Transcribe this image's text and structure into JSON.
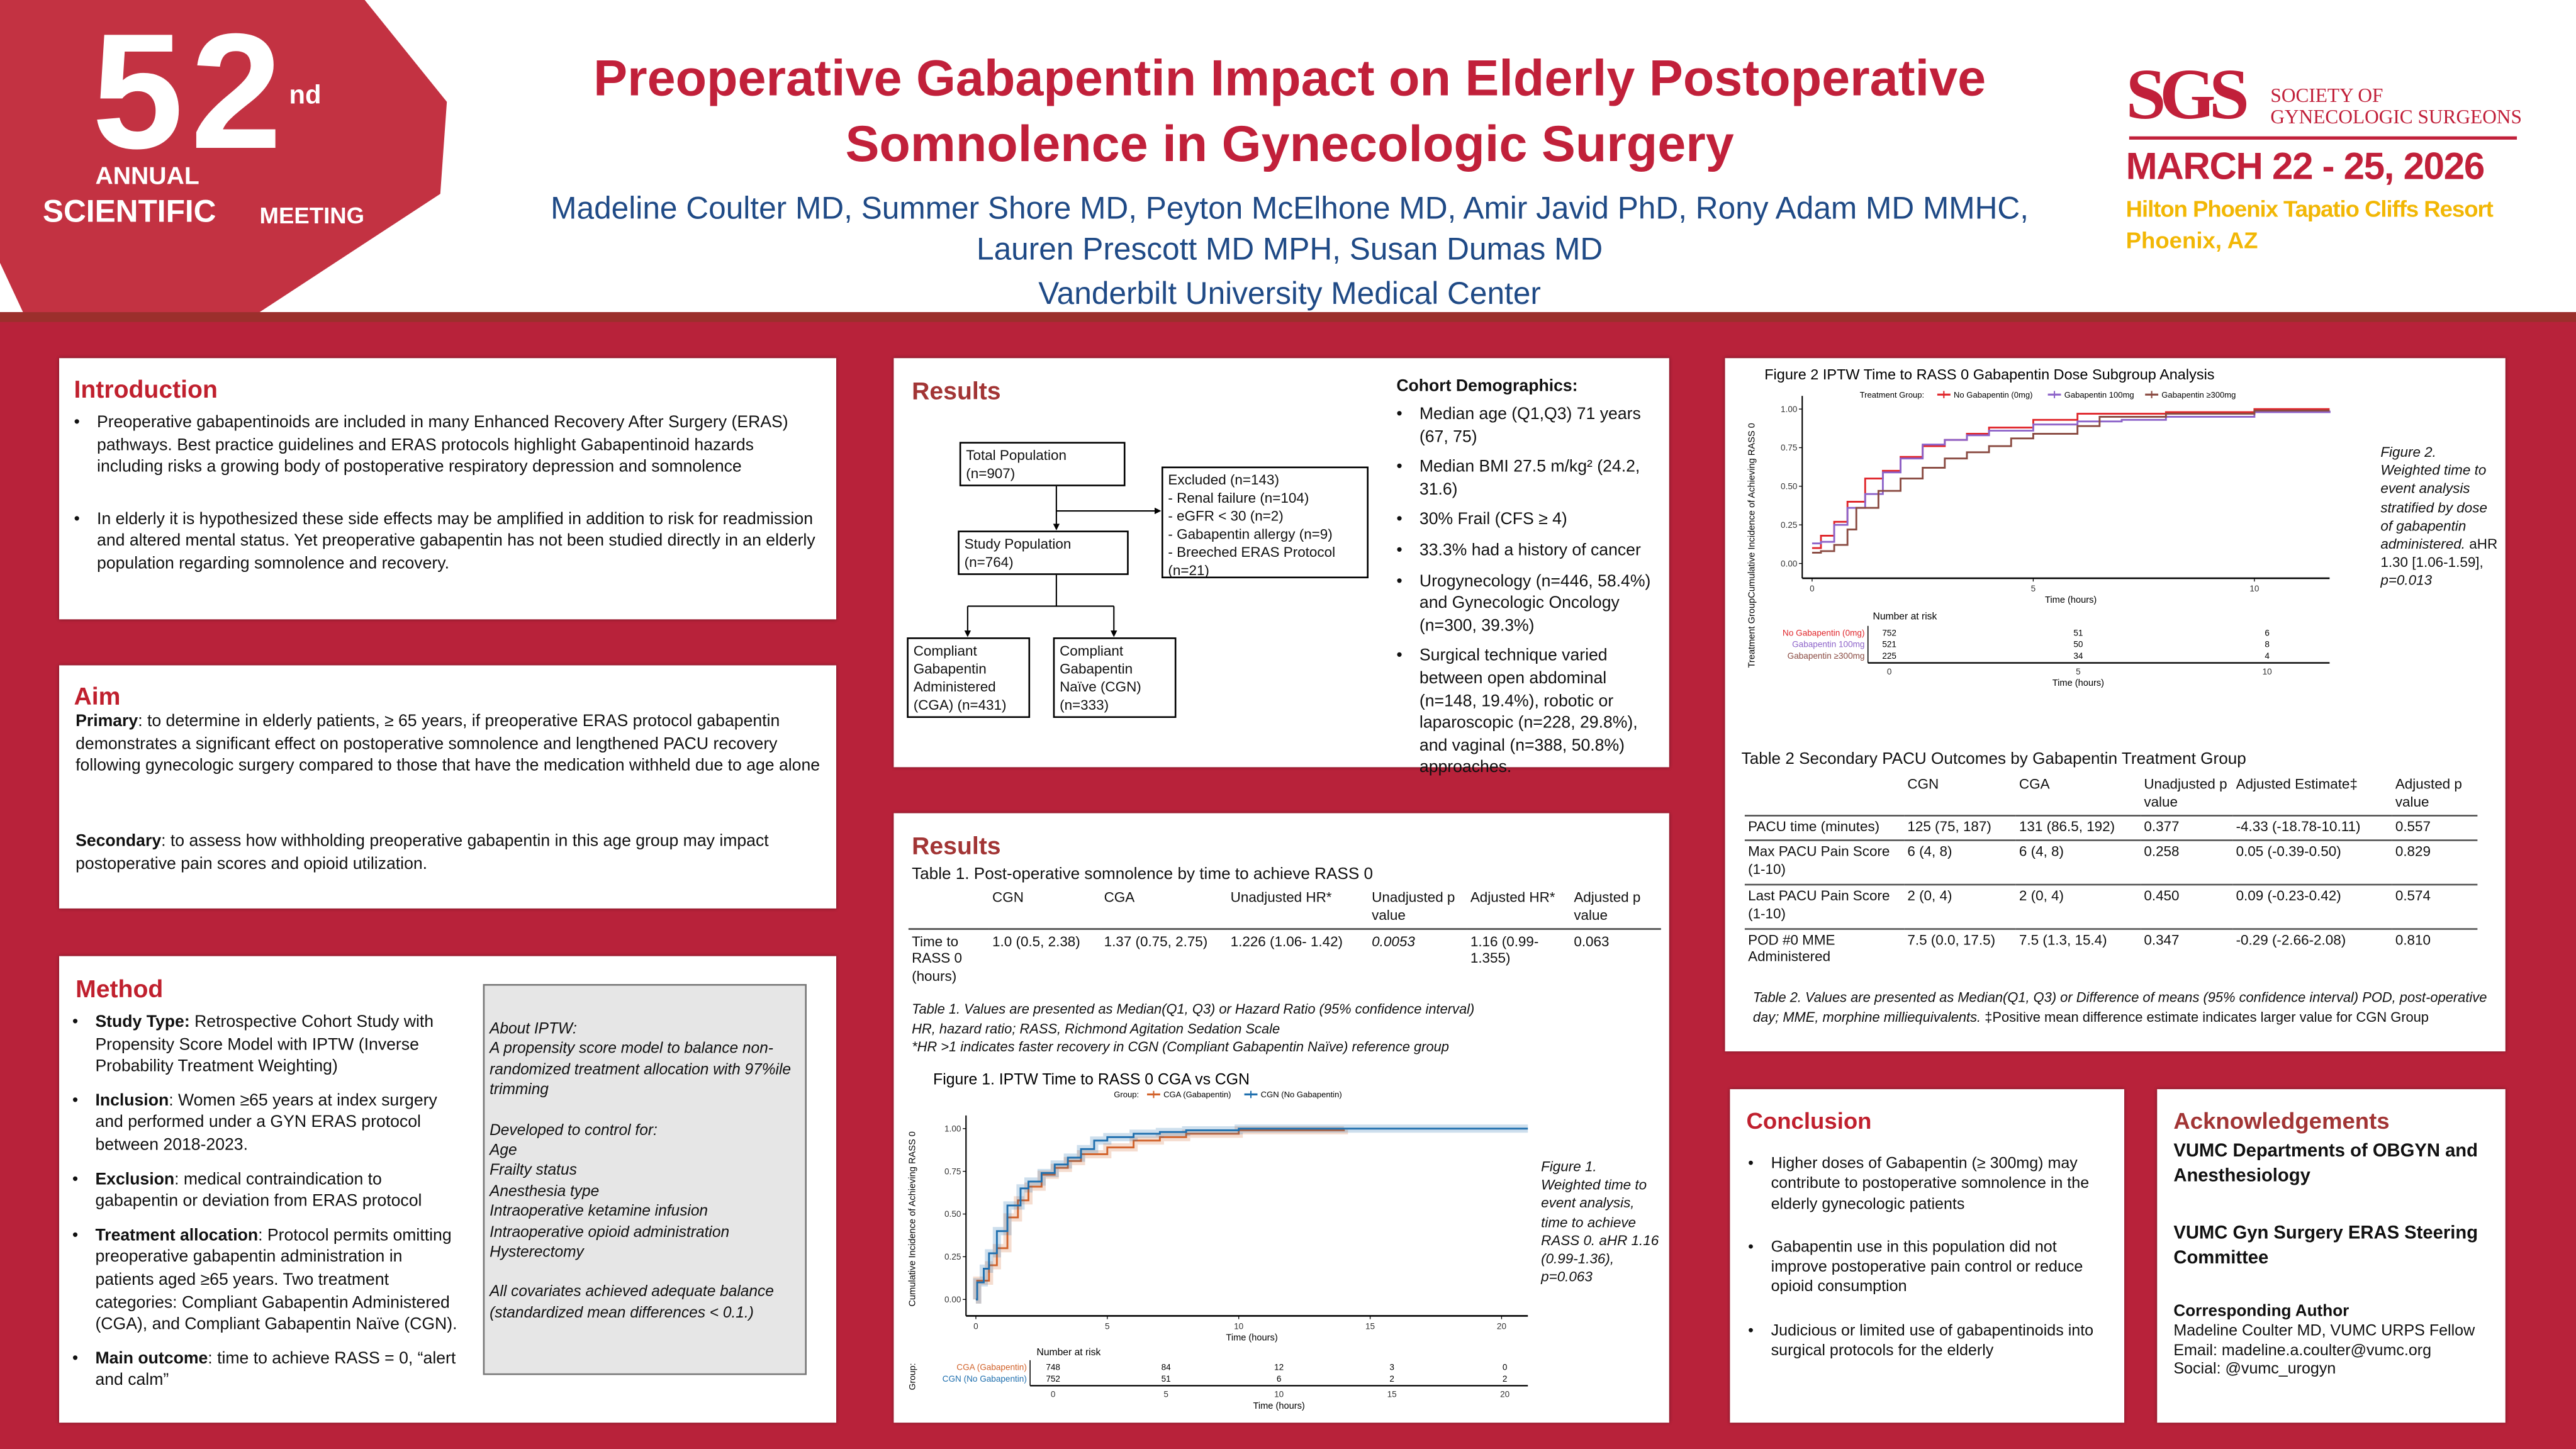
{
  "logo": {
    "num5": "5",
    "num2": "2",
    "suffix": "nd",
    "annual": "ANNUAL",
    "scientific": "SCIENTIFIC",
    "meeting": "MEETING"
  },
  "header": {
    "title_line1": "Preoperative Gabapentin Impact on Elderly Postoperative",
    "title_line2": "Somnolence in Gynecologic Surgery",
    "authors_line1": "Madeline Coulter MD, Summer Shore MD, Peyton McElhone MD, Amir Javid PhD, Rony Adam MD MMHC,",
    "authors_line2": "Lauren Prescott MD MPH, Susan Dumas MD",
    "affiliation": "Vanderbilt University Medical Center"
  },
  "society": {
    "abbr": "SGS",
    "name_line1": "SOCIETY OF",
    "name_line2": "GYNECOLOGIC SURGEONS",
    "dates": "MARCH 22 - 25, 2026",
    "venue": "Hilton Phoenix Tapatio Cliffs Resort",
    "city": "Phoenix, AZ",
    "colors": {
      "red": "#c1203a",
      "gold": "#f2b705"
    }
  },
  "introduction": {
    "heading": "Introduction",
    "bullets": [
      "Preoperative gabapentinoids are included in many Enhanced Recovery After Surgery (ERAS) pathways. Best practice guidelines and ERAS protocols highlight Gabapentinoid hazards including risks a growing body of postoperative respiratory depression and somnolence",
      "In elderly it is hypothesized these side effects may be amplified in addition to risk for readmission and altered mental status. Yet preoperative gabapentin has not been studied directly in an elderly population regarding somnolence and recovery."
    ]
  },
  "aim": {
    "heading": "Aim",
    "primary_label": "Primary",
    "primary_text": ":  to determine in elderly patients, ≥ 65 years, if preoperative ERAS protocol gabapentin demonstrates a significant effect on postoperative somnolence and lengthened PACU recovery following gynecologic surgery compared to those that have the medication withheld due to age alone",
    "secondary_label": "Secondary",
    "secondary_text": ": to assess how withholding preoperative gabapentin in this age group may impact postoperative pain scores and opioid utilization."
  },
  "method": {
    "heading": "Method",
    "items": [
      {
        "label": "Study Type:",
        "text": " Retrospective Cohort Study with Propensity Score Model  with IPTW (Inverse Probability Treatment Weighting)"
      },
      {
        "label": "Inclusion",
        "text": ": Women ≥65 years at index surgery and performed under a GYN ERAS protocol between 2018-2023."
      },
      {
        "label": "Exclusion",
        "text": ": medical contraindication to gabapentin or deviation from ERAS protocol"
      },
      {
        "label": "Treatment allocation",
        "text": ": Protocol permits omitting preoperative gabapentin administration in patients aged ≥65 years. Two treatment categories: Compliant Gabapentin Administered (CGA), and Compliant Gabapentin Naïve (CGN)."
      },
      {
        "label": "Main outcome",
        "text": ": time to achieve RASS = 0, “alert and calm”"
      }
    ],
    "iptw_box": {
      "title": "About IPTW:",
      "description": "A propensity score model to balance non-randomized treatment allocation with 97%ile trimming",
      "controls_title": "Developed to control for:",
      "controls": [
        "Age",
        "Frailty status",
        "Anesthesia type",
        "Intraoperative ketamine infusion",
        "Intraoperative opioid administration",
        "Hysterectomy"
      ],
      "balance_note": "All covariates achieved adequate balance (standardized mean differences < 0.1.)"
    }
  },
  "results1": {
    "heading": "Results",
    "flow": {
      "total": [
        "Total Population",
        "(n=907)"
      ],
      "excluded": [
        "Excluded (n=143)",
        "- Renal failure (n=104)",
        "- eGFR < 30 (n=2)",
        "- Gabapentin allergy (n=9)",
        "- Breeched ERAS Protocol (n=21)"
      ],
      "study": [
        "Study Population",
        "(n=764)"
      ],
      "cga": [
        "Compliant Gabapentin Administered (CGA) (n=431)"
      ],
      "cgn": [
        "Compliant Gabapentin Naïve (CGN) (n=333)"
      ]
    },
    "demographics": {
      "heading": "Cohort Demographics:",
      "bullets": [
        "Median age (Q1,Q3) 71 years (67, 75)",
        "Median BMI 27.5 m/kg² (24.2, 31.6)",
        "30% Frail (CFS ≥ 4)",
        "33.3% had a history of cancer",
        "Urogynecology (n=446, 58.4%) and Gynecologic Oncology (n=300, 39.3%)",
        "Surgical technique varied between open abdominal (n=148, 19.4%), robotic or laparoscopic (n=228, 29.8%), and vaginal (n=388, 50.8%) approaches."
      ]
    }
  },
  "results2": {
    "heading": "Results",
    "table1": {
      "title": "Table 1. Post-operative somnolence by time to achieve RASS 0",
      "columns": [
        "",
        "CGN",
        "CGA",
        "Unadjusted HR*",
        "Unadjusted p value",
        "Adjusted HR*",
        "Adjusted p value"
      ],
      "rows": [
        [
          "Time to RASS 0 (hours)",
          "1.0 (0.5, 2.38)",
          "1.37 (0.75, 2.75)",
          "1.226 (1.06- 1.42)",
          "0.0053",
          "1.16 (0.99-1.355)",
          "0.063"
        ]
      ],
      "footnotes": [
        "Table 1. Values are presented as Median(Q1, Q3) or Hazard Ratio (95% confidence interval)",
        "HR, hazard ratio; RASS, Richmond Agitation Sedation Scale",
        "*HR >1 indicates faster recovery in CGN (Compliant Gabapentin Naïve) reference group"
      ]
    },
    "figure1_caption": "Figure 1. Weighted time to event analysis, time to achieve RASS 0. aHR 1.16 (0.99-1.36), p=0.063"
  },
  "figure2_panel": {
    "caption_italic": "Figure 2. Weighted time to event analysis stratified by dose of gabapentin administered.",
    "caption_stats": "aHR 1.30 [1.06-1.59],",
    "caption_p": "p=0.013",
    "table2": {
      "title": "Table 2 Secondary PACU Outcomes by Gabapentin Treatment Group",
      "columns": [
        "",
        "CGN",
        "CGA",
        "Unadjusted p value",
        "Adjusted Estimate‡",
        "Adjusted p value"
      ],
      "rows": [
        [
          "PACU time (minutes)",
          "125 (75, 187)",
          "131 (86.5, 192)",
          "0.377",
          "-4.33 (-18.78-10.11)",
          "0.557"
        ],
        [
          "Max PACU Pain Score (1-10)",
          "6 (4, 8)",
          "6 (4, 8)",
          "0.258",
          "0.05 (-0.39-0.50)",
          "0.829"
        ],
        [
          "Last PACU Pain Score (1-10)",
          "2 (0, 4)",
          "2 (0, 4)",
          "0.450",
          "0.09 (-0.23-0.42)",
          "0.574"
        ],
        [
          "POD #0 MME Administered",
          "7.5 (0.0, 17.5)",
          "7.5 (1.3, 15.4)",
          "0.347",
          "-0.29 (-2.66-2.08)",
          "0.810"
        ]
      ],
      "footnote_italic": "Table 2. Values are presented as Median(Q1, Q3) or Difference of means (95% confidence interval) POD, post-operative day; MME, morphine milliequivalents.",
      "footnote_plain": " ‡Positive mean difference estimate indicates larger value for CGN Group"
    }
  },
  "conclusion": {
    "heading": "Conclusion",
    "bullets": [
      "Higher doses of Gabapentin (≥ 300mg) may contribute to postoperative somnolence in the elderly gynecologic patients",
      "Gabapentin use in this population did not improve postoperative pain control or reduce opioid consumption",
      "Judicious or limited use of gabapentinoids into surgical protocols for the elderly"
    ]
  },
  "acknowledgements": {
    "heading": "Acknowledgements",
    "group1": "VUMC Departments of OBGYN and Anesthesiology",
    "group2": "VUMC Gyn Surgery ERAS Steering Committee",
    "corresponding_title": "Corresponding Author",
    "corresponding_name": "Madeline Coulter MD, VUMC URPS Fellow",
    "email": "Email: madeline.a.coulter@vumc.org",
    "social": "Social: @vumc_urogyn"
  },
  "chart_data": [
    {
      "id": "fig1",
      "type": "line",
      "title": "Figure 1. IPTW Time to RASS 0 CGA vs CGN",
      "legend_title": "Group:",
      "legend_position": "top",
      "xlabel": "Time (hours)",
      "ylabel": "Cumulative Incidence of Achieving RASS 0",
      "xlim": [
        0,
        21
      ],
      "ylim": [
        0,
        1
      ],
      "xticks": [
        0,
        5,
        10,
        15,
        20
      ],
      "yticks": [
        "0.00",
        "0.25",
        "0.50",
        "0.75",
        "1.00"
      ],
      "series": [
        {
          "name": "CGA (Gabapentin)",
          "color": "#d2622a",
          "x": [
            0,
            0.05,
            0.5,
            0.8,
            1.2,
            1.6,
            2,
            2.5,
            3,
            3.5,
            4,
            5,
            6,
            7,
            8,
            10,
            14
          ],
          "y": [
            0,
            0.11,
            0.2,
            0.3,
            0.48,
            0.58,
            0.66,
            0.73,
            0.77,
            0.81,
            0.85,
            0.89,
            0.93,
            0.95,
            0.97,
            0.99,
            0.995
          ]
        },
        {
          "name": "CGN (No Gabapentin)",
          "color": "#1f6fae",
          "x": [
            0,
            0.05,
            0.3,
            0.5,
            0.8,
            1.2,
            1.7,
            2,
            2.5,
            3,
            3.5,
            4,
            4.5,
            5,
            6,
            7,
            8,
            10,
            21
          ],
          "y": [
            0,
            0.1,
            0.18,
            0.27,
            0.4,
            0.55,
            0.65,
            0.69,
            0.74,
            0.79,
            0.83,
            0.88,
            0.93,
            0.95,
            0.97,
            0.98,
            0.99,
            1.0,
            1.0
          ]
        }
      ],
      "risk_table": {
        "title": "Number at risk",
        "axis_title": "Group:",
        "xlabel": "Time (hours)",
        "times": [
          0,
          5,
          10,
          15,
          20
        ],
        "rows": [
          {
            "name": "CGA (Gabapentin)",
            "values": [
              748,
              84,
              12,
              3,
              0
            ]
          },
          {
            "name": "CGN (No Gabapentin)",
            "values": [
              752,
              51,
              6,
              2,
              2
            ]
          }
        ]
      }
    },
    {
      "id": "fig2",
      "type": "line",
      "title": "Figure 2 IPTW Time to RASS 0 Gabapentin Dose Subgroup Analysis",
      "legend_title": "Treatment Group:",
      "legend_position": "top",
      "xlabel": "Time (hours)",
      "ylabel": "Treatment GroupCumulative Incidence of Achieving RASS 0",
      "xlim": [
        0,
        11.7
      ],
      "ylim": [
        0,
        1
      ],
      "xticks": [
        0,
        5,
        10
      ],
      "yticks": [
        "0.00",
        "0.25",
        "0.50",
        "0.75",
        "1.00"
      ],
      "series": [
        {
          "name": "No Gabapentin (0mg)",
          "color": "#e0262b",
          "x": [
            0,
            0.2,
            0.5,
            0.8,
            1.2,
            1.6,
            2,
            2.5,
            3,
            3.5,
            4,
            5,
            6,
            8,
            10,
            11.7
          ],
          "y": [
            0.1,
            0.18,
            0.27,
            0.4,
            0.55,
            0.6,
            0.69,
            0.76,
            0.8,
            0.84,
            0.88,
            0.93,
            0.97,
            0.98,
            1.0,
            1.0
          ]
        },
        {
          "name": "Gabapentin 100mg",
          "color": "#8d63c9",
          "x": [
            0,
            0.2,
            0.5,
            0.8,
            1.2,
            1.6,
            2,
            2.5,
            3,
            3.5,
            4,
            5,
            6,
            7,
            8,
            10,
            11.7
          ],
          "y": [
            0.13,
            0.14,
            0.25,
            0.36,
            0.45,
            0.59,
            0.68,
            0.77,
            0.8,
            0.83,
            0.86,
            0.9,
            0.92,
            0.93,
            0.95,
            0.98,
            0.99
          ]
        },
        {
          "name": "Gabapentin ≥300mg",
          "color": "#8a4b42",
          "x": [
            0,
            0.2,
            0.5,
            0.8,
            1,
            1.5,
            2,
            2.5,
            3,
            3.5,
            4,
            4.5,
            5,
            6,
            6.5,
            8,
            10,
            11.7
          ],
          "y": [
            0.07,
            0.08,
            0.12,
            0.22,
            0.36,
            0.47,
            0.55,
            0.62,
            0.68,
            0.72,
            0.76,
            0.81,
            0.84,
            0.89,
            0.95,
            0.97,
            0.99,
            0.99
          ]
        }
      ],
      "risk_table": {
        "title": "Number at risk",
        "xlabel": "Time (hours)",
        "times": [
          0,
          5,
          10
        ],
        "rows": [
          {
            "name": "No Gabapentin (0mg)",
            "values": [
              752,
              51,
              6
            ]
          },
          {
            "name": "Gabapentin 100mg",
            "values": [
              521,
              50,
              8
            ]
          },
          {
            "name": "Gabapentin ≥300mg",
            "values": [
              225,
              34,
              4
            ]
          }
        ]
      }
    }
  ]
}
